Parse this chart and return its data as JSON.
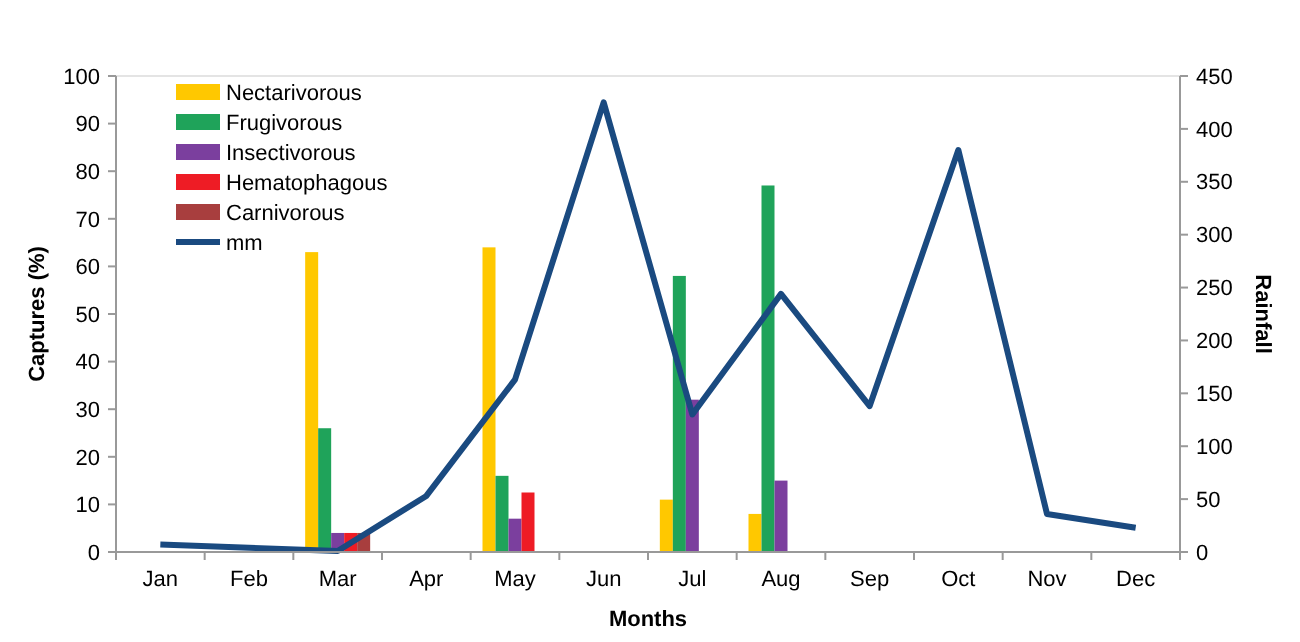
{
  "chart_data": {
    "type": "bar",
    "xlabel": "Months",
    "ylabel": "Captures (%)",
    "y2label": "Rainfall",
    "categories": [
      "Jan",
      "Feb",
      "Mar",
      "Apr",
      "May",
      "Jun",
      "Jul",
      "Aug",
      "Sep",
      "Oct",
      "Nov",
      "Dec"
    ],
    "series": [
      {
        "name": "Nectarivorous",
        "color": "#ffc800",
        "values": [
          0,
          0,
          63,
          0,
          64,
          0,
          11,
          8,
          0,
          0,
          0,
          0
        ]
      },
      {
        "name": "Frugivorous",
        "color": "#1fa35a",
        "values": [
          0,
          0,
          26,
          0,
          16,
          0,
          58,
          77,
          0,
          0,
          0,
          0
        ]
      },
      {
        "name": "Insectivorous",
        "color": "#7b3f9e",
        "values": [
          0,
          0,
          4,
          0,
          7,
          0,
          32,
          15,
          0,
          0,
          0,
          0
        ]
      },
      {
        "name": "Hematophagous",
        "color": "#ee1c25",
        "values": [
          0,
          0,
          4,
          0,
          12.5,
          0,
          0,
          0,
          0,
          0,
          0,
          0
        ]
      },
      {
        "name": "Carnivorous",
        "color": "#a83e3e",
        "values": [
          0,
          0,
          4,
          0,
          0,
          0,
          0,
          0,
          0,
          0,
          0,
          0
        ]
      },
      {
        "name": "mm",
        "type": "line",
        "axis": "y2",
        "color": "#1a4a80",
        "values": [
          7,
          4,
          1,
          53,
          163,
          425,
          130,
          244,
          138,
          380,
          36,
          23
        ]
      }
    ],
    "ylim": [
      0,
      100
    ],
    "yticks": [
      0,
      10,
      20,
      30,
      40,
      50,
      60,
      70,
      80,
      90,
      100
    ],
    "y2lim": [
      0,
      450
    ],
    "y2ticks": [
      0,
      50,
      100,
      150,
      200,
      250,
      300,
      350,
      400,
      450
    ],
    "legend": "top left",
    "grid": false,
    "marker": "none",
    "line_style": "solid"
  }
}
